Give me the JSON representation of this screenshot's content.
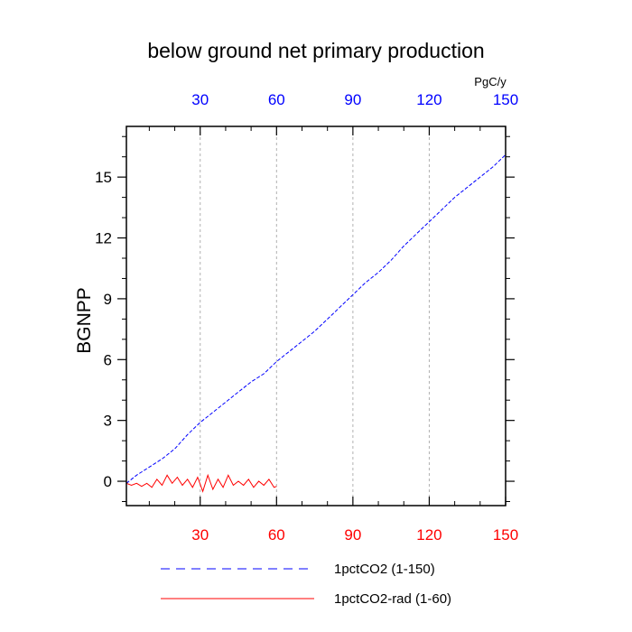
{
  "chart_data": {
    "type": "line",
    "title": "below ground net primary production",
    "ylabel": "BGNPP",
    "units": "PgC/y",
    "xlim": [
      1,
      150
    ],
    "ylim": [
      -1.2,
      17.5
    ],
    "x_ticks": [
      30,
      60,
      90,
      120,
      150
    ],
    "y_ticks": [
      0,
      3,
      6,
      9,
      12,
      15
    ],
    "y_tick_labels": [
      "0",
      "3",
      "6",
      "9",
      "12",
      "15"
    ],
    "x_tick_labels": [
      "30",
      "60",
      "90",
      "120",
      "150"
    ],
    "grid": "vertical-dashed",
    "legend_position": "bottom",
    "colors": {
      "bottom_axis": "#ff0000",
      "top_axis": "#0000ff",
      "grid": "#b0b0b0"
    },
    "series": [
      {
        "name": "1pctCO2 (1-150)",
        "color": "#0000ff",
        "style": "dashed",
        "x": [
          1,
          5,
          10,
          15,
          20,
          25,
          30,
          35,
          40,
          45,
          50,
          55,
          60,
          65,
          70,
          75,
          80,
          85,
          90,
          95,
          100,
          105,
          110,
          115,
          120,
          125,
          130,
          135,
          140,
          145,
          150
        ],
        "y": [
          -0.1,
          0.3,
          0.7,
          1.1,
          1.6,
          2.3,
          2.9,
          3.4,
          3.9,
          4.4,
          4.9,
          5.3,
          5.9,
          6.4,
          6.9,
          7.4,
          8.0,
          8.6,
          9.2,
          9.8,
          10.3,
          10.9,
          11.6,
          12.2,
          12.8,
          13.4,
          14.0,
          14.5,
          15.0,
          15.5,
          16.1
        ]
      },
      {
        "name": "1pctCO2-rad (1-60)",
        "color": "#ff0000",
        "style": "solid",
        "x": [
          1,
          3,
          5,
          7,
          9,
          11,
          13,
          15,
          17,
          19,
          21,
          23,
          25,
          27,
          29,
          31,
          33,
          35,
          37,
          39,
          41,
          43,
          45,
          47,
          49,
          51,
          53,
          55,
          57,
          59,
          60
        ],
        "y": [
          -0.1,
          -0.2,
          -0.1,
          -0.25,
          -0.1,
          -0.3,
          0.1,
          -0.2,
          0.3,
          -0.1,
          0.2,
          -0.2,
          0.1,
          -0.3,
          0.2,
          -0.5,
          0.3,
          -0.4,
          0.1,
          -0.3,
          0.3,
          -0.2,
          0.0,
          -0.2,
          0.1,
          -0.3,
          0.0,
          -0.2,
          0.1,
          -0.3,
          -0.25
        ]
      }
    ]
  }
}
